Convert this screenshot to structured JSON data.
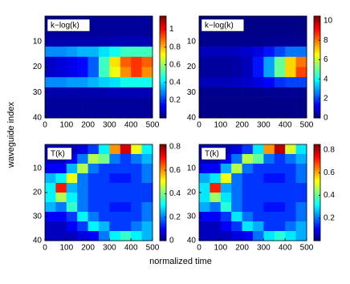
{
  "xlabel": "normalized time",
  "ylabel": "waveguide index",
  "chart_data": [
    {
      "type": "heatmap",
      "title": "k−log(k)",
      "xlim": [
        0,
        500
      ],
      "ylim": [
        40,
        0
      ],
      "xticks": [
        0,
        100,
        200,
        300,
        400,
        500
      ],
      "yticks": [
        10,
        20,
        30,
        40
      ],
      "x": [
        25,
        75,
        125,
        175,
        225,
        275,
        325,
        375,
        425,
        475
      ],
      "y": [
        2,
        6,
        10,
        14,
        18,
        22,
        26,
        30,
        34,
        38
      ],
      "clim": [
        0,
        1.15
      ],
      "cticks": [
        0.2,
        0.4,
        0.6,
        0.8,
        1
      ],
      "z": [
        [
          0.03,
          0.03,
          0.03,
          0.03,
          0.03,
          0.03,
          0.03,
          0.03,
          0.03,
          0.03
        ],
        [
          0.03,
          0.03,
          0.03,
          0.03,
          0.03,
          0.03,
          0.03,
          0.03,
          0.03,
          0.03
        ],
        [
          0.05,
          0.05,
          0.05,
          0.05,
          0.05,
          0.05,
          0.06,
          0.06,
          0.06,
          0.06
        ],
        [
          0.3,
          0.3,
          0.32,
          0.35,
          0.35,
          0.4,
          0.45,
          0.5,
          0.5,
          0.5
        ],
        [
          0.08,
          0.1,
          0.12,
          0.15,
          0.25,
          0.5,
          0.75,
          0.9,
          0.95,
          0.9
        ],
        [
          0.08,
          0.1,
          0.12,
          0.15,
          0.25,
          0.5,
          0.7,
          0.85,
          0.95,
          0.85
        ],
        [
          0.3,
          0.3,
          0.32,
          0.32,
          0.35,
          0.38,
          0.4,
          0.45,
          0.45,
          0.45
        ],
        [
          0.05,
          0.05,
          0.05,
          0.05,
          0.05,
          0.05,
          0.06,
          0.06,
          0.06,
          0.06
        ],
        [
          0.03,
          0.03,
          0.03,
          0.03,
          0.03,
          0.03,
          0.03,
          0.03,
          0.03,
          0.03
        ],
        [
          0.03,
          0.03,
          0.03,
          0.03,
          0.03,
          0.03,
          0.03,
          0.03,
          0.03,
          0.03
        ]
      ]
    },
    {
      "type": "heatmap",
      "title": "k−log(k)",
      "xlim": [
        0,
        500
      ],
      "ylim": [
        40,
        0
      ],
      "xticks": [
        0,
        100,
        200,
        300,
        400,
        500
      ],
      "yticks": [
        10,
        20,
        30,
        40
      ],
      "x": [
        25,
        75,
        125,
        175,
        225,
        275,
        325,
        375,
        425,
        475
      ],
      "y": [
        2,
        6,
        10,
        14,
        18,
        22,
        26,
        30,
        34,
        38
      ],
      "clim": [
        0,
        10.5
      ],
      "cticks": [
        0,
        2,
        4,
        6,
        8,
        10
      ],
      "z": [
        [
          0.1,
          0.1,
          0.1,
          0.1,
          0.1,
          0.1,
          0.1,
          0.1,
          0.1,
          0.1
        ],
        [
          0.1,
          0.1,
          0.1,
          0.1,
          0.1,
          0.1,
          0.1,
          0.1,
          0.1,
          0.1
        ],
        [
          0.15,
          0.15,
          0.15,
          0.15,
          0.15,
          0.15,
          0.2,
          0.2,
          0.2,
          0.2
        ],
        [
          0.6,
          0.6,
          0.6,
          0.7,
          0.8,
          1,
          1.5,
          2,
          2.5,
          2.5
        ],
        [
          0.3,
          0.3,
          0.3,
          0.4,
          0.6,
          1.5,
          3,
          5,
          7,
          8
        ],
        [
          0.3,
          0.3,
          0.3,
          0.4,
          0.6,
          1.5,
          3,
          5,
          7,
          8.5
        ],
        [
          0.6,
          0.6,
          0.6,
          0.7,
          0.8,
          1,
          1.3,
          1.8,
          2,
          2
        ],
        [
          0.15,
          0.15,
          0.15,
          0.15,
          0.15,
          0.15,
          0.2,
          0.2,
          0.2,
          0.2
        ],
        [
          0.1,
          0.1,
          0.1,
          0.1,
          0.1,
          0.1,
          0.1,
          0.1,
          0.1,
          0.1
        ],
        [
          0.1,
          0.1,
          0.1,
          0.1,
          0.1,
          0.1,
          0.1,
          0.1,
          0.1,
          0.1
        ]
      ]
    },
    {
      "type": "heatmap",
      "title": "T(k)",
      "xlim": [
        0,
        500
      ],
      "ylim": [
        40,
        0
      ],
      "xticks": [
        0,
        100,
        200,
        300,
        400,
        500
      ],
      "yticks": [
        10,
        20,
        30,
        40
      ],
      "x": [
        25,
        75,
        125,
        175,
        225,
        275,
        325,
        375,
        425,
        475
      ],
      "y": [
        2,
        6,
        10,
        14,
        18,
        22,
        26,
        30,
        34,
        38
      ],
      "clim": [
        0,
        0.82
      ],
      "cticks": [
        0,
        0.2,
        0.4,
        0.6,
        0.8
      ],
      "z": [
        [
          0.05,
          0.05,
          0.05,
          0.08,
          0.15,
          0.3,
          0.6,
          0.75,
          0.5,
          0.3
        ],
        [
          0.05,
          0.05,
          0.1,
          0.2,
          0.45,
          0.4,
          0.2,
          0.15,
          0.2,
          0.25
        ],
        [
          0.1,
          0.1,
          0.25,
          0.45,
          0.2,
          0.15,
          0.15,
          0.15,
          0.15,
          0.2
        ],
        [
          0.25,
          0.3,
          0.5,
          0.2,
          0.15,
          0.15,
          0.12,
          0.12,
          0.15,
          0.2
        ],
        [
          0.3,
          0.7,
          0.25,
          0.2,
          0.15,
          0.15,
          0.15,
          0.15,
          0.15,
          0.15
        ],
        [
          0.3,
          0.45,
          0.3,
          0.2,
          0.15,
          0.15,
          0.15,
          0.15,
          0.15,
          0.15
        ],
        [
          0.25,
          0.2,
          0.35,
          0.2,
          0.15,
          0.15,
          0.12,
          0.12,
          0.15,
          0.2
        ],
        [
          0.1,
          0.1,
          0.15,
          0.3,
          0.2,
          0.15,
          0.15,
          0.15,
          0.15,
          0.2
        ],
        [
          0.05,
          0.05,
          0.1,
          0.15,
          0.3,
          0.25,
          0.15,
          0.15,
          0.2,
          0.25
        ],
        [
          0.05,
          0.05,
          0.05,
          0.08,
          0.1,
          0.2,
          0.3,
          0.35,
          0.3,
          0.25
        ]
      ]
    },
    {
      "type": "heatmap",
      "title": "T(k)",
      "xlim": [
        0,
        500
      ],
      "ylim": [
        40,
        0
      ],
      "xticks": [
        0,
        100,
        200,
        300,
        400,
        500
      ],
      "yticks": [
        10,
        20,
        30,
        40
      ],
      "x": [
        25,
        75,
        125,
        175,
        225,
        275,
        325,
        375,
        425,
        475
      ],
      "y": [
        2,
        6,
        10,
        14,
        18,
        22,
        26,
        30,
        34,
        38
      ],
      "clim": [
        0,
        0.85
      ],
      "cticks": [
        0.2,
        0.4,
        0.6,
        0.8
      ],
      "z": [
        [
          0.05,
          0.05,
          0.05,
          0.08,
          0.15,
          0.3,
          0.62,
          0.8,
          0.5,
          0.3
        ],
        [
          0.05,
          0.05,
          0.1,
          0.2,
          0.47,
          0.4,
          0.2,
          0.15,
          0.2,
          0.25
        ],
        [
          0.1,
          0.1,
          0.25,
          0.47,
          0.2,
          0.15,
          0.15,
          0.15,
          0.15,
          0.2
        ],
        [
          0.25,
          0.3,
          0.52,
          0.2,
          0.15,
          0.15,
          0.12,
          0.12,
          0.15,
          0.2
        ],
        [
          0.3,
          0.72,
          0.25,
          0.2,
          0.15,
          0.15,
          0.15,
          0.15,
          0.15,
          0.15
        ],
        [
          0.3,
          0.45,
          0.3,
          0.2,
          0.15,
          0.15,
          0.15,
          0.15,
          0.15,
          0.15
        ],
        [
          0.25,
          0.2,
          0.35,
          0.2,
          0.15,
          0.15,
          0.12,
          0.12,
          0.15,
          0.2
        ],
        [
          0.1,
          0.1,
          0.15,
          0.3,
          0.2,
          0.15,
          0.15,
          0.15,
          0.15,
          0.2
        ],
        [
          0.05,
          0.05,
          0.1,
          0.15,
          0.3,
          0.25,
          0.15,
          0.15,
          0.2,
          0.25
        ],
        [
          0.05,
          0.05,
          0.05,
          0.08,
          0.1,
          0.2,
          0.3,
          0.35,
          0.3,
          0.25
        ]
      ]
    }
  ]
}
